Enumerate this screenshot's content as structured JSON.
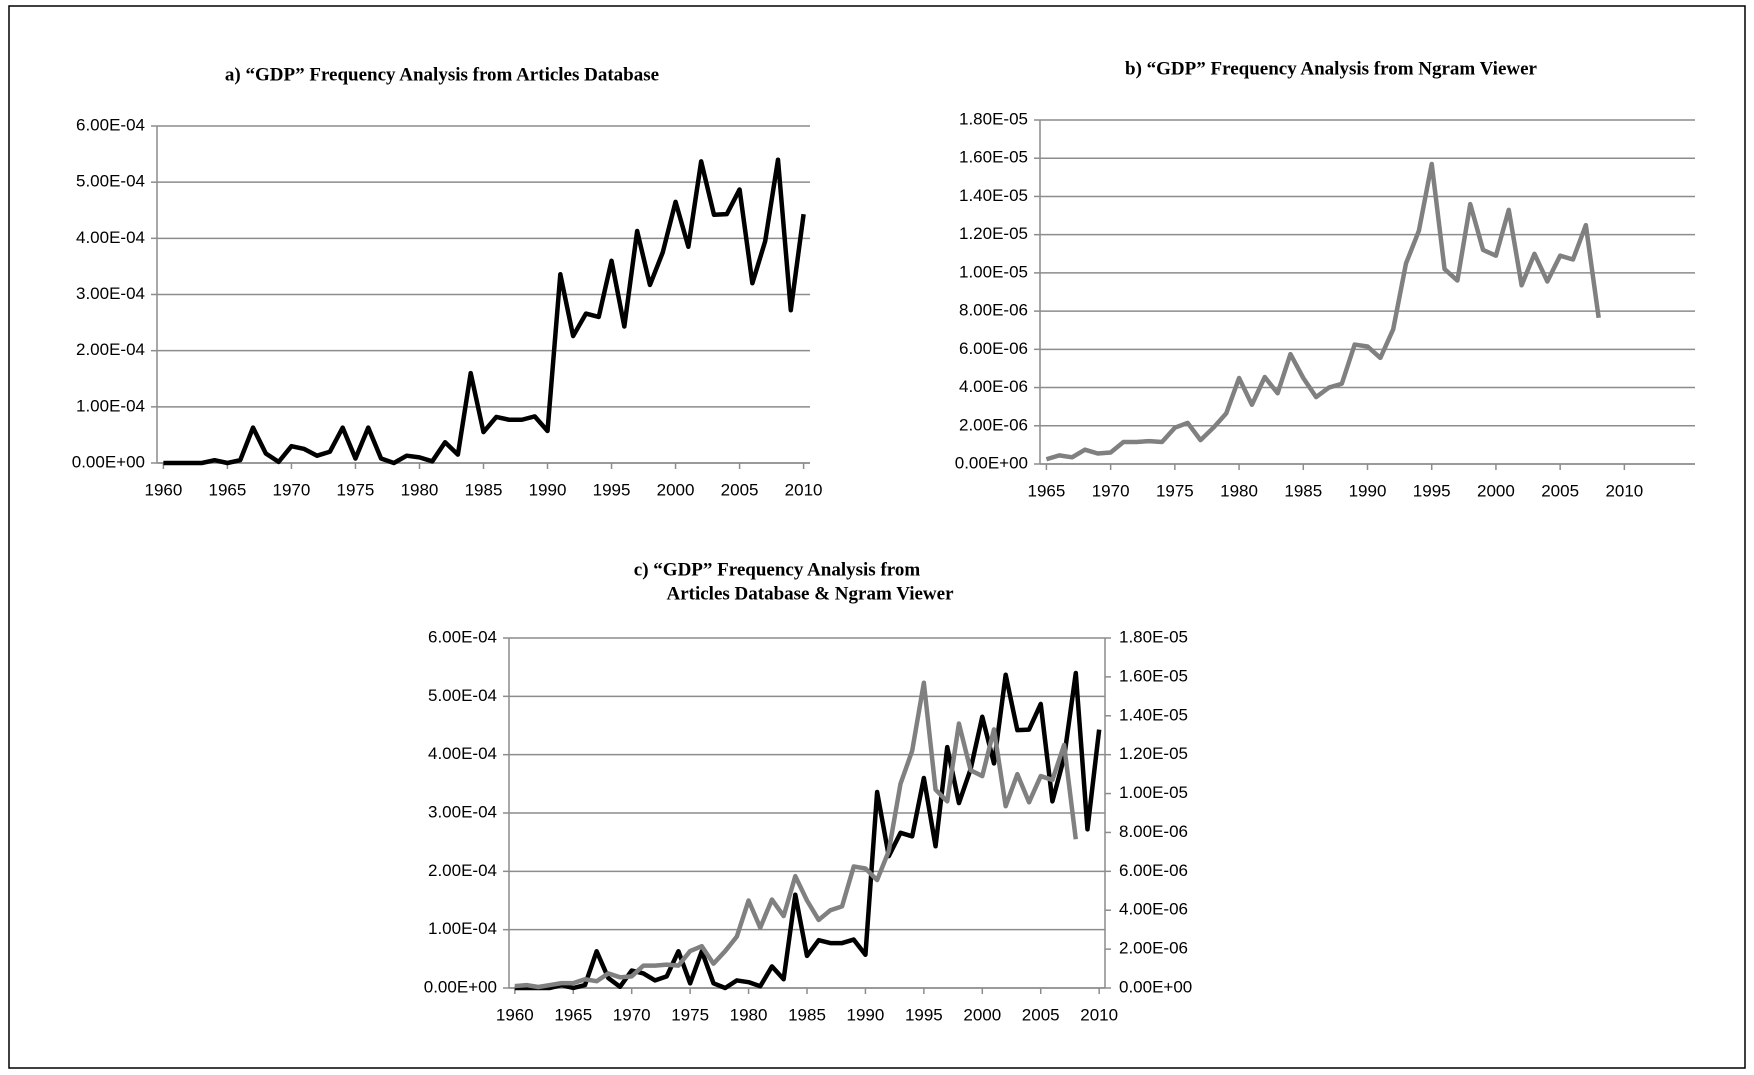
{
  "chart_data": [
    {
      "type": "line",
      "title": [
        "a)  “GDP” Frequency Analysis from Articles Database"
      ],
      "x": [
        1960,
        1961,
        1962,
        1963,
        1964,
        1965,
        1966,
        1967,
        1968,
        1969,
        1970,
        1971,
        1972,
        1973,
        1974,
        1975,
        1976,
        1977,
        1978,
        1979,
        1980,
        1981,
        1982,
        1983,
        1984,
        1985,
        1986,
        1987,
        1988,
        1989,
        1990,
        1991,
        1992,
        1993,
        1994,
        1995,
        1996,
        1997,
        1998,
        1999,
        2000,
        2001,
        2002,
        2003,
        2004,
        2005,
        2006,
        2007,
        2008,
        2009,
        2010
      ],
      "series": [
        {
          "color": "#000000",
          "values": [
            0,
            0,
            0,
            0,
            5e-06,
            0,
            5e-06,
            6.3e-05,
            1.7e-05,
            2e-06,
            3e-05,
            2.5e-05,
            1.3e-05,
            2e-05,
            6.3e-05,
            8e-06,
            6.3e-05,
            8e-06,
            0,
            1.3e-05,
            1e-05,
            3e-06,
            3.7e-05,
            1.5e-05,
            0.00016,
            5.5e-05,
            8.2e-05,
            7.7e-05,
            7.7e-05,
            8.3e-05,
            5.7e-05,
            0.000336,
            0.000226,
            0.000266,
            0.00026,
            0.00036,
            0.000243,
            0.000413,
            0.000317,
            0.000375,
            0.000465,
            0.000385,
            0.000537,
            0.000442,
            0.000443,
            0.000487,
            0.00032,
            0.000395,
            0.00054,
            0.000272,
            0.000443
          ]
        }
      ],
      "xlim": [
        1959.5,
        2010.5
      ],
      "xticks": [
        1960,
        1965,
        1970,
        1975,
        1980,
        1985,
        1990,
        1995,
        2000,
        2005,
        2010
      ],
      "ylim": [
        0,
        0.0006
      ],
      "yticks": [
        {
          "value": 0,
          "label": "0.00E+00"
        },
        {
          "value": 0.0001,
          "label": "1.00E-04"
        },
        {
          "value": 0.0002,
          "label": "2.00E-04"
        },
        {
          "value": 0.0003,
          "label": "3.00E-04"
        },
        {
          "value": 0.0004,
          "label": "4.00E-04"
        },
        {
          "value": 0.0005,
          "label": "5.00E-04"
        },
        {
          "value": 0.0006,
          "label": "6.00E-04"
        }
      ],
      "grid": true
    },
    {
      "type": "line",
      "title": [
        "b)  “GDP” Frequency Analysis from Ngram Viewer"
      ],
      "x": [
        1965,
        1966,
        1967,
        1968,
        1969,
        1970,
        1971,
        1972,
        1973,
        1974,
        1975,
        1976,
        1977,
        1978,
        1979,
        1980,
        1981,
        1982,
        1983,
        1984,
        1985,
        1986,
        1987,
        1988,
        1989,
        1990,
        1991,
        1992,
        1993,
        1994,
        1995,
        1996,
        1997,
        1998,
        1999,
        2000,
        2001,
        2002,
        2003,
        2004,
        2005,
        2006,
        2007,
        2008
      ],
      "series": [
        {
          "color": "#808080",
          "values": [
            2.5e-07,
            4.5e-07,
            3.5e-07,
            7.5e-07,
            5.5e-07,
            6e-07,
            1.15e-06,
            1.15e-06,
            1.2e-06,
            1.15e-06,
            1.9e-06,
            2.15e-06,
            1.25e-06,
            1.9e-06,
            2.65e-06,
            4.5e-06,
            3.1e-06,
            4.55e-06,
            3.7e-06,
            5.75e-06,
            4.5e-06,
            3.5e-06,
            4e-06,
            4.2e-06,
            6.25e-06,
            6.15e-06,
            5.55e-06,
            7.05e-06,
            1.05e-05,
            1.22e-05,
            1.57e-05,
            1.02e-05,
            9.6e-06,
            1.36e-05,
            1.12e-05,
            1.09e-05,
            1.33e-05,
            9.35e-06,
            1.1e-05,
            9.55e-06,
            1.09e-05,
            1.07e-05,
            1.25e-05,
            7.65e-06
          ]
        }
      ],
      "xlim": [
        1964.5,
        2015.5
      ],
      "xticks": [
        1965,
        1970,
        1975,
        1980,
        1985,
        1990,
        1995,
        2000,
        2005,
        2010
      ],
      "ylim": [
        0,
        1.8e-05
      ],
      "yticks": [
        {
          "value": 0,
          "label": "0.00E+00"
        },
        {
          "value": 2e-06,
          "label": "2.00E-06"
        },
        {
          "value": 4e-06,
          "label": "4.00E-06"
        },
        {
          "value": 6e-06,
          "label": "6.00E-06"
        },
        {
          "value": 8e-06,
          "label": "8.00E-06"
        },
        {
          "value": 1e-05,
          "label": "1.00E-05"
        },
        {
          "value": 1.2e-05,
          "label": "1.20E-05"
        },
        {
          "value": 1.4e-05,
          "label": "1.40E-05"
        },
        {
          "value": 1.6e-05,
          "label": "1.60E-05"
        },
        {
          "value": 1.8e-05,
          "label": "1.80E-05"
        }
      ],
      "grid": true
    },
    {
      "type": "line",
      "title": [
        "c)  “GDP” Frequency Analysis from",
        "Articles Database & Ngram Viewer"
      ],
      "x": [
        1960,
        1961,
        1962,
        1963,
        1964,
        1965,
        1966,
        1967,
        1968,
        1969,
        1970,
        1971,
        1972,
        1973,
        1974,
        1975,
        1976,
        1977,
        1978,
        1979,
        1980,
        1981,
        1982,
        1983,
        1984,
        1985,
        1986,
        1987,
        1988,
        1989,
        1990,
        1991,
        1992,
        1993,
        1994,
        1995,
        1996,
        1997,
        1998,
        1999,
        2000,
        2001,
        2002,
        2003,
        2004,
        2005,
        2006,
        2007,
        2008,
        2009,
        2010
      ],
      "series": [
        {
          "color": "#000000",
          "values": [
            0,
            0,
            0,
            0,
            5e-06,
            0,
            5e-06,
            6.3e-05,
            1.7e-05,
            2e-06,
            3e-05,
            2.5e-05,
            1.3e-05,
            2e-05,
            6.3e-05,
            8e-06,
            6.3e-05,
            8e-06,
            0,
            1.3e-05,
            1e-05,
            3e-06,
            3.7e-05,
            1.5e-05,
            0.00016,
            5.5e-05,
            8.2e-05,
            7.7e-05,
            7.7e-05,
            8.3e-05,
            5.7e-05,
            0.000336,
            0.000226,
            0.000266,
            0.00026,
            0.00036,
            0.000243,
            0.000413,
            0.000317,
            0.000375,
            0.000465,
            0.000385,
            0.000537,
            0.000442,
            0.000443,
            0.000487,
            0.00032,
            0.000395,
            0.00054,
            0.000272,
            0.000443
          ]
        },
        {
          "color": "#808080",
          "axis": "y2",
          "values": [
            1e-07,
            1.5e-07,
            5e-08,
            1.5e-07,
            2.5e-07,
            2.5e-07,
            4.5e-07,
            3.5e-07,
            7.5e-07,
            5.5e-07,
            6e-07,
            1.15e-06,
            1.15e-06,
            1.2e-06,
            1.15e-06,
            1.9e-06,
            2.15e-06,
            1.25e-06,
            1.9e-06,
            2.65e-06,
            4.5e-06,
            3.1e-06,
            4.55e-06,
            3.7e-06,
            5.75e-06,
            4.5e-06,
            3.5e-06,
            4e-06,
            4.2e-06,
            6.25e-06,
            6.15e-06,
            5.55e-06,
            7.05e-06,
            1.05e-05,
            1.22e-05,
            1.57e-05,
            1.02e-05,
            9.6e-06,
            1.36e-05,
            1.12e-05,
            1.09e-05,
            1.33e-05,
            9.35e-06,
            1.1e-05,
            9.55e-06,
            1.09e-05,
            1.07e-05,
            1.25e-05,
            7.65e-06,
            null,
            null
          ]
        }
      ],
      "xlim": [
        1959.5,
        2010.5
      ],
      "xticks": [
        1960,
        1965,
        1970,
        1975,
        1980,
        1985,
        1990,
        1995,
        2000,
        2005,
        2010
      ],
      "ylim": [
        0,
        0.0006
      ],
      "yticks": [
        {
          "value": 0,
          "label": "0.00E+00"
        },
        {
          "value": 0.0001,
          "label": "1.00E-04"
        },
        {
          "value": 0.0002,
          "label": "2.00E-04"
        },
        {
          "value": 0.0003,
          "label": "3.00E-04"
        },
        {
          "value": 0.0004,
          "label": "4.00E-04"
        },
        {
          "value": 0.0005,
          "label": "5.00E-04"
        },
        {
          "value": 0.0006,
          "label": "6.00E-04"
        }
      ],
      "y2lim": [
        0,
        1.8e-05
      ],
      "y2ticks": [
        {
          "value": 0,
          "label": "0.00E+00"
        },
        {
          "value": 2e-06,
          "label": "2.00E-06"
        },
        {
          "value": 4e-06,
          "label": "4.00E-06"
        },
        {
          "value": 6e-06,
          "label": "6.00E-06"
        },
        {
          "value": 8e-06,
          "label": "8.00E-06"
        },
        {
          "value": 1e-05,
          "label": "1.00E-05"
        },
        {
          "value": 1.2e-05,
          "label": "1.20E-05"
        },
        {
          "value": 1.4e-05,
          "label": "1.40E-05"
        },
        {
          "value": 1.6e-05,
          "label": "1.60E-05"
        },
        {
          "value": 1.8e-05,
          "label": "1.80E-05"
        }
      ],
      "grid": true
    }
  ]
}
